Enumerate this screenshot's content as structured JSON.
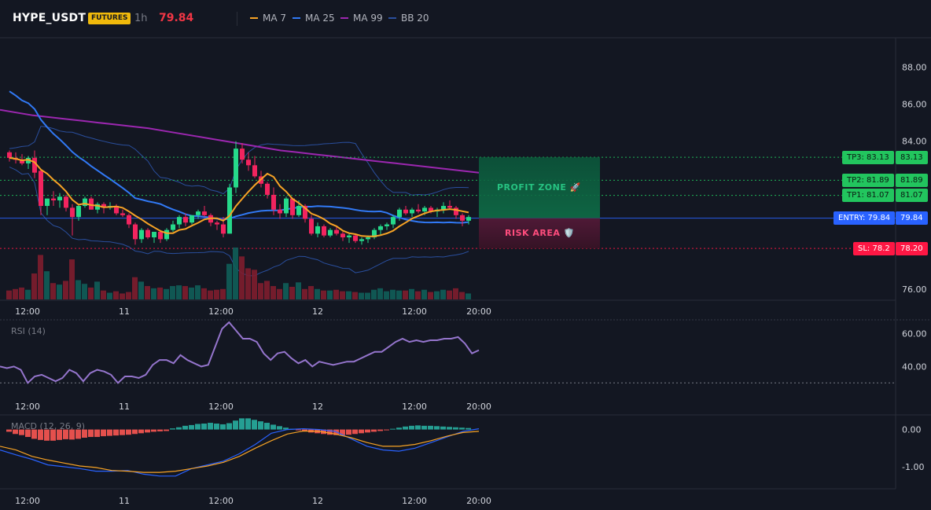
{
  "header": {
    "symbol": "HYPE_USDT",
    "badge": "FUTURES",
    "timeframe": "1h",
    "price": "79.84",
    "legend": [
      {
        "label": "MA 7",
        "color": "#f7a325"
      },
      {
        "label": "MA 25",
        "color": "#3179f5"
      },
      {
        "label": "MA 99",
        "color": "#9c27b0"
      },
      {
        "label": "BB 20",
        "color": "#2a4f9e"
      }
    ]
  },
  "levels": {
    "tp3": {
      "label": "TP3: 83.13",
      "value": "83.13",
      "price": 83.13,
      "color": "#22c55e"
    },
    "tp2": {
      "label": "TP2: 81.89",
      "value": "81.89",
      "price": 81.89,
      "color": "#22c55e"
    },
    "tp1": {
      "label": "TP1: 81.07",
      "value": "81.07",
      "price": 81.07,
      "color": "#22c55e"
    },
    "entry": {
      "label": "ENTRY: 79.84",
      "value": "79.84",
      "price": 79.84,
      "color": "#2962ff"
    },
    "sl": {
      "label": "SL: 78.2",
      "value": "78.20",
      "price": 78.2,
      "color": "#ff1744"
    }
  },
  "zones": {
    "profit": "PROFIT ZONE 🚀",
    "risk": "RISK AREA 🛡️"
  },
  "x_ticks": [
    "12:00",
    "11",
    "12:00",
    "12",
    "12:00",
    "20:00"
  ],
  "price_ticks": [
    "88.00",
    "86.00",
    "84.00",
    "76.00"
  ],
  "rsi": {
    "label": "RSI (14)",
    "ticks": [
      "60.00",
      "40.00"
    ],
    "color": "#9575cd"
  },
  "macd": {
    "label": "MACD (12, 26, 9)",
    "ticks": [
      "0.00",
      "-1.00"
    ]
  },
  "chart_data": [
    {
      "type": "candlestick",
      "title": "HYPE_USDT",
      "ylim": [
        75.4,
        89.6
      ],
      "candles": [
        [
          83.4,
          83.5,
          82.9,
          83.1
        ],
        [
          83.1,
          83.4,
          82.8,
          83.0
        ],
        [
          83.0,
          83.3,
          82.7,
          82.8
        ],
        [
          82.8,
          83.2,
          82.5,
          83.1
        ],
        [
          83.1,
          83.5,
          82.0,
          82.3
        ],
        [
          82.4,
          82.5,
          80.0,
          80.5
        ],
        [
          80.5,
          80.9,
          80.0,
          80.9
        ],
        [
          80.9,
          81.3,
          80.5,
          80.8
        ],
        [
          80.8,
          81.2,
          80.4,
          81.0
        ],
        [
          81.0,
          81.1,
          80.2,
          80.4
        ],
        [
          80.4,
          80.6,
          78.9,
          79.9
        ],
        [
          79.9,
          80.6,
          79.7,
          80.5
        ],
        [
          80.5,
          81.0,
          80.4,
          80.9
        ],
        [
          80.9,
          81.0,
          80.3,
          80.3
        ],
        [
          80.3,
          80.7,
          80.1,
          80.6
        ],
        [
          80.6,
          80.7,
          80.1,
          80.4
        ],
        [
          80.4,
          80.7,
          80.3,
          80.5
        ],
        [
          80.5,
          80.6,
          80.0,
          80.1
        ],
        [
          80.1,
          80.3,
          79.9,
          80.0
        ],
        [
          80.0,
          80.1,
          79.3,
          79.5
        ],
        [
          79.5,
          79.6,
          78.4,
          78.7
        ],
        [
          78.7,
          79.3,
          78.5,
          79.2
        ],
        [
          79.2,
          79.3,
          78.7,
          78.8
        ],
        [
          78.8,
          79.1,
          78.5,
          79.1
        ],
        [
          79.1,
          79.2,
          78.5,
          78.7
        ],
        [
          78.7,
          79.3,
          78.6,
          79.2
        ],
        [
          79.2,
          79.7,
          79.1,
          79.5
        ],
        [
          79.5,
          80.0,
          79.3,
          79.9
        ],
        [
          79.9,
          80.1,
          79.4,
          79.6
        ],
        [
          79.6,
          80.0,
          79.5,
          80.0
        ],
        [
          80.0,
          80.3,
          79.8,
          80.2
        ],
        [
          80.2,
          80.5,
          79.9,
          80.0
        ],
        [
          80.0,
          80.1,
          79.4,
          79.6
        ],
        [
          79.6,
          79.7,
          79.2,
          79.5
        ],
        [
          79.5,
          79.9,
          78.8,
          79.0
        ],
        [
          79.0,
          81.7,
          79.0,
          81.5
        ],
        [
          81.5,
          84.0,
          81.2,
          83.6
        ],
        [
          83.6,
          83.9,
          82.8,
          83.0
        ],
        [
          83.0,
          83.4,
          82.4,
          82.7
        ],
        [
          82.7,
          83.2,
          82.0,
          82.1
        ],
        [
          82.1,
          82.4,
          81.5,
          81.7
        ],
        [
          81.7,
          81.8,
          80.9,
          81.1
        ],
        [
          81.1,
          81.5,
          80.0,
          80.3
        ],
        [
          80.3,
          80.6,
          79.8,
          80.1
        ],
        [
          80.1,
          81.0,
          79.9,
          80.9
        ],
        [
          80.9,
          80.9,
          79.8,
          80.0
        ],
        [
          80.0,
          80.8,
          79.9,
          80.5
        ],
        [
          80.5,
          80.6,
          79.6,
          79.8
        ],
        [
          79.8,
          80.0,
          78.9,
          79.0
        ],
        [
          79.0,
          79.6,
          78.8,
          79.4
        ],
        [
          79.4,
          79.5,
          78.8,
          78.9
        ],
        [
          78.9,
          79.3,
          78.8,
          79.2
        ],
        [
          79.2,
          79.4,
          78.9,
          79.0
        ],
        [
          79.0,
          79.1,
          78.6,
          78.8
        ],
        [
          78.8,
          79.0,
          78.5,
          78.9
        ],
        [
          78.9,
          79.0,
          78.5,
          78.6
        ],
        [
          78.6,
          78.8,
          78.4,
          78.7
        ],
        [
          78.7,
          78.9,
          78.5,
          78.8
        ],
        [
          78.8,
          79.3,
          78.7,
          79.2
        ],
        [
          79.2,
          79.5,
          78.9,
          79.4
        ],
        [
          79.4,
          79.6,
          79.2,
          79.5
        ],
        [
          79.5,
          80.0,
          79.3,
          79.9
        ],
        [
          79.9,
          80.4,
          79.7,
          80.3
        ],
        [
          80.3,
          80.5,
          80.0,
          80.1
        ],
        [
          80.1,
          80.4,
          79.9,
          80.3
        ],
        [
          80.3,
          80.6,
          80.1,
          80.2
        ],
        [
          80.2,
          80.5,
          80.0,
          80.4
        ],
        [
          80.4,
          80.5,
          80.1,
          80.2
        ],
        [
          80.2,
          80.4,
          79.9,
          80.3
        ],
        [
          80.3,
          80.7,
          80.1,
          80.5
        ],
        [
          80.5,
          80.8,
          80.3,
          80.4
        ],
        [
          80.4,
          80.5,
          79.8,
          80.0
        ],
        [
          80.0,
          80.1,
          79.4,
          79.7
        ],
        [
          79.7,
          80.0,
          79.5,
          79.9
        ]
      ],
      "volume": [
        12,
        14,
        16,
        13,
        35,
        60,
        38,
        22,
        20,
        25,
        54,
        26,
        21,
        16,
        24,
        12,
        9,
        11,
        8,
        10,
        30,
        24,
        18,
        15,
        16,
        14,
        18,
        19,
        18,
        16,
        19,
        15,
        12,
        13,
        14,
        48,
        70,
        58,
        42,
        40,
        22,
        25,
        18,
        14,
        22,
        17,
        23,
        14,
        18,
        14,
        12,
        12,
        13,
        11,
        11,
        10,
        9,
        9,
        13,
        15,
        11,
        13,
        12,
        12,
        14,
        11,
        13,
        10,
        11,
        13,
        12,
        15,
        10,
        8
      ],
      "series": [
        {
          "name": "MA 7"
        },
        {
          "name": "MA 25"
        },
        {
          "name": "MA 99",
          "values": [
            85.7,
            85.55,
            85.4,
            85.3,
            85.2,
            85.1,
            85.0,
            84.9,
            84.8,
            84.7,
            84.55,
            84.4,
            84.25,
            84.1,
            83.95,
            83.8,
            83.65,
            83.5,
            83.4,
            83.3,
            83.2,
            83.1,
            83.0,
            82.9,
            82.8,
            82.7,
            82.6,
            82.5,
            82.4,
            82.3
          ]
        },
        {
          "name": "BB 20"
        }
      ],
      "levels": {
        "tp3": 83.13,
        "tp2": 81.89,
        "tp1": 81.07,
        "entry": 79.84,
        "sl": 78.2
      }
    },
    {
      "type": "line",
      "title": "RSI (14)",
      "ylim": [
        22,
        68
      ],
      "series": [
        {
          "name": "RSI (14)",
          "values": [
            40,
            39,
            40,
            38,
            30,
            34,
            35,
            33,
            31,
            33,
            38,
            36,
            31,
            36,
            38,
            37,
            35,
            30,
            34,
            34,
            33,
            35,
            41,
            44,
            44,
            42,
            47,
            44,
            42,
            40,
            41,
            52,
            63,
            67,
            62,
            57,
            57,
            55,
            48,
            44,
            48,
            49,
            45,
            42,
            44,
            40,
            43,
            42,
            41,
            42,
            43,
            43,
            45,
            47,
            49,
            49,
            52,
            55,
            57,
            55,
            56,
            55,
            56,
            56,
            57,
            57,
            58,
            54,
            48,
            50
          ]
        }
      ]
    },
    {
      "type": "bar",
      "title": "MACD (12, 26, 9)",
      "ylim": [
        -1.55,
        0.35
      ],
      "histogram": [
        -0.06,
        -0.12,
        -0.15,
        -0.2,
        -0.25,
        -0.28,
        -0.3,
        -0.3,
        -0.28,
        -0.26,
        -0.27,
        -0.25,
        -0.22,
        -0.2,
        -0.2,
        -0.18,
        -0.17,
        -0.16,
        -0.15,
        -0.14,
        -0.12,
        -0.1,
        -0.08,
        -0.06,
        -0.05,
        -0.04,
        0.03,
        0.06,
        0.1,
        0.12,
        0.15,
        0.16,
        0.18,
        0.16,
        0.14,
        0.17,
        0.24,
        0.3,
        0.3,
        0.26,
        0.22,
        0.18,
        0.13,
        0.09,
        0.05,
        0.02,
        -0.02,
        -0.05,
        -0.08,
        -0.1,
        -0.12,
        -0.14,
        -0.15,
        -0.15,
        -0.14,
        -0.12,
        -0.1,
        -0.08,
        -0.06,
        -0.04,
        -0.02,
        0.02,
        0.05,
        0.08,
        0.1,
        0.11,
        0.1,
        0.1,
        0.09,
        0.08,
        0.07,
        0.06,
        0.05,
        0.04
      ],
      "series": [
        {
          "name": "MACD",
          "values": [
            -0.55,
            -0.68,
            -0.8,
            -0.95,
            -1.0,
            -1.05,
            -1.12,
            -1.12,
            -1.1,
            -1.2,
            -1.25,
            -1.25,
            -1.05,
            -0.95,
            -0.85,
            -0.65,
            -0.4,
            -0.1,
            0.0,
            0.02,
            0.0,
            -0.05,
            -0.25,
            -0.45,
            -0.55,
            -0.58,
            -0.5,
            -0.35,
            -0.2,
            -0.05,
            0.02
          ]
        },
        {
          "name": "Signal",
          "values": [
            -0.45,
            -0.55,
            -0.72,
            -0.82,
            -0.9,
            -0.98,
            -1.02,
            -1.1,
            -1.12,
            -1.15,
            -1.15,
            -1.12,
            -1.05,
            -0.98,
            -0.88,
            -0.72,
            -0.5,
            -0.3,
            -0.12,
            -0.04,
            -0.05,
            -0.12,
            -0.22,
            -0.35,
            -0.45,
            -0.45,
            -0.4,
            -0.3,
            -0.18,
            -0.08,
            -0.05
          ]
        }
      ]
    }
  ]
}
